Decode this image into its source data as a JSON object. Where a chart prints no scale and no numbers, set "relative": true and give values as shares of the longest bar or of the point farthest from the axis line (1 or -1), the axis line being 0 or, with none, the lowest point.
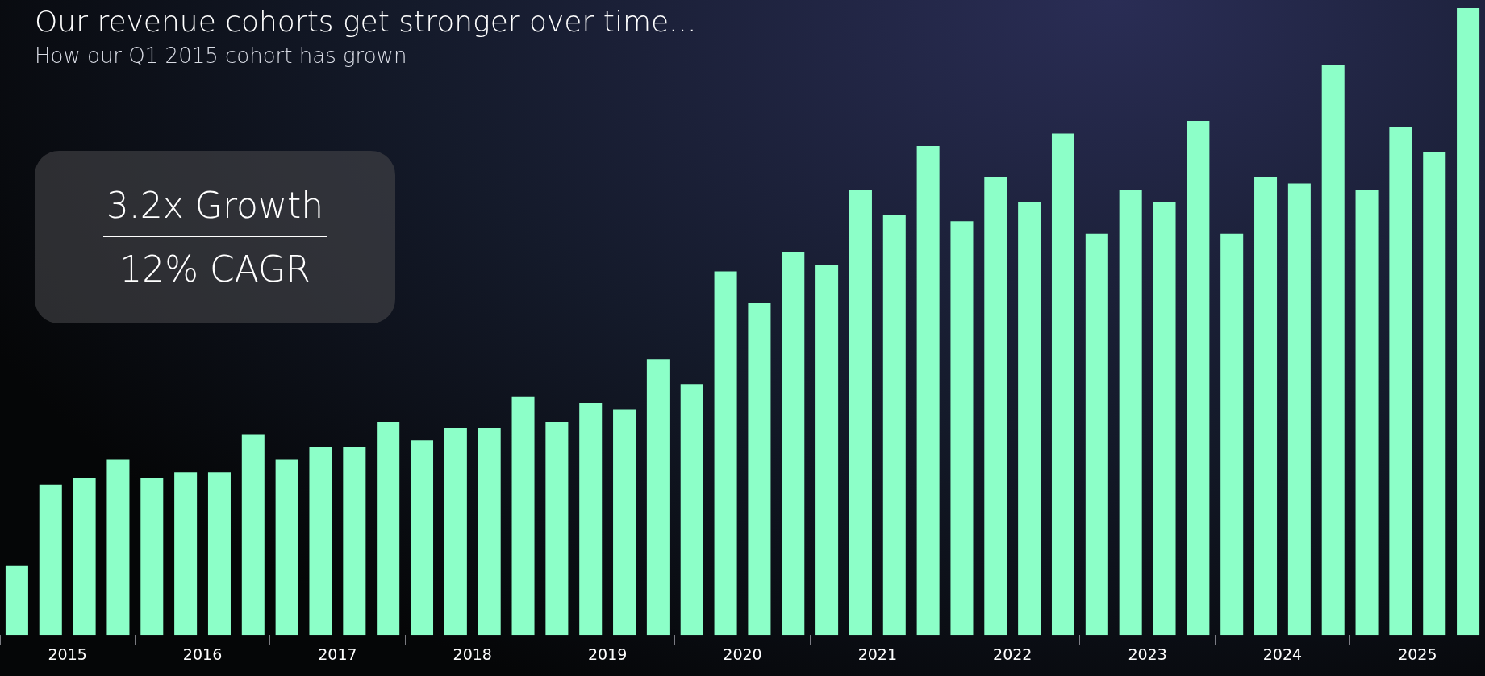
{
  "chart_data": {
    "type": "bar",
    "title": "Our revenue cohorts get stronger over time...",
    "subtitle": "How our Q1 2015 cohort has grown",
    "relative": true,
    "legend": false,
    "categories": [
      null,
      "2015",
      null,
      null,
      null,
      "2016",
      null,
      null,
      null,
      "2017",
      null,
      null,
      null,
      "2018",
      null,
      null,
      null,
      "2019",
      null,
      null,
      null,
      "2020",
      null,
      null,
      null,
      "2021",
      null,
      null,
      null,
      "2022",
      null,
      null,
      null,
      "2023",
      null,
      null,
      null,
      "2024",
      null,
      null,
      null,
      "2025",
      null,
      null
    ],
    "series": [
      {
        "color": "#8cffc8",
        "values": [
          0.11,
          0.24,
          0.25,
          0.28,
          0.25,
          0.26,
          0.26,
          0.32,
          0.28,
          0.3,
          0.3,
          0.34,
          0.31,
          0.33,
          0.33,
          0.38,
          0.34,
          0.37,
          0.36,
          0.44,
          0.4,
          0.58,
          0.53,
          0.61,
          0.59,
          0.71,
          0.67,
          0.78,
          0.66,
          0.73,
          0.69,
          0.8,
          0.64,
          0.71,
          0.69,
          0.82,
          0.64,
          0.73,
          0.72,
          0.91,
          0.71,
          0.81,
          0.77,
          1
        ]
      }
    ],
    "annotations": [
      "3.2x Growth",
      "12% CAGR"
    ]
  }
}
